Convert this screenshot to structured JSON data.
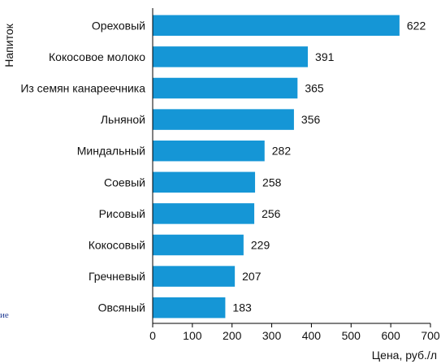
{
  "chart_data": {
    "type": "bar",
    "orientation": "horizontal",
    "categories": [
      "Ореховый",
      "Кокосовое молоко",
      "Из семян канареечника",
      "Льняной",
      "Миндальный",
      "Соевый",
      "Рисовый",
      "Кокосовый",
      "Гречневый",
      "Овсяный"
    ],
    "values": [
      622,
      391,
      365,
      356,
      282,
      258,
      256,
      229,
      207,
      183
    ],
    "xlabel": "Цена, руб./л",
    "ylabel": "Напиток",
    "xlim": [
      0,
      700
    ],
    "xticks": [
      0,
      100,
      200,
      300,
      400,
      500,
      600,
      700
    ],
    "grid": false,
    "bar_color": "#1596d6"
  },
  "stray_text": "ие"
}
